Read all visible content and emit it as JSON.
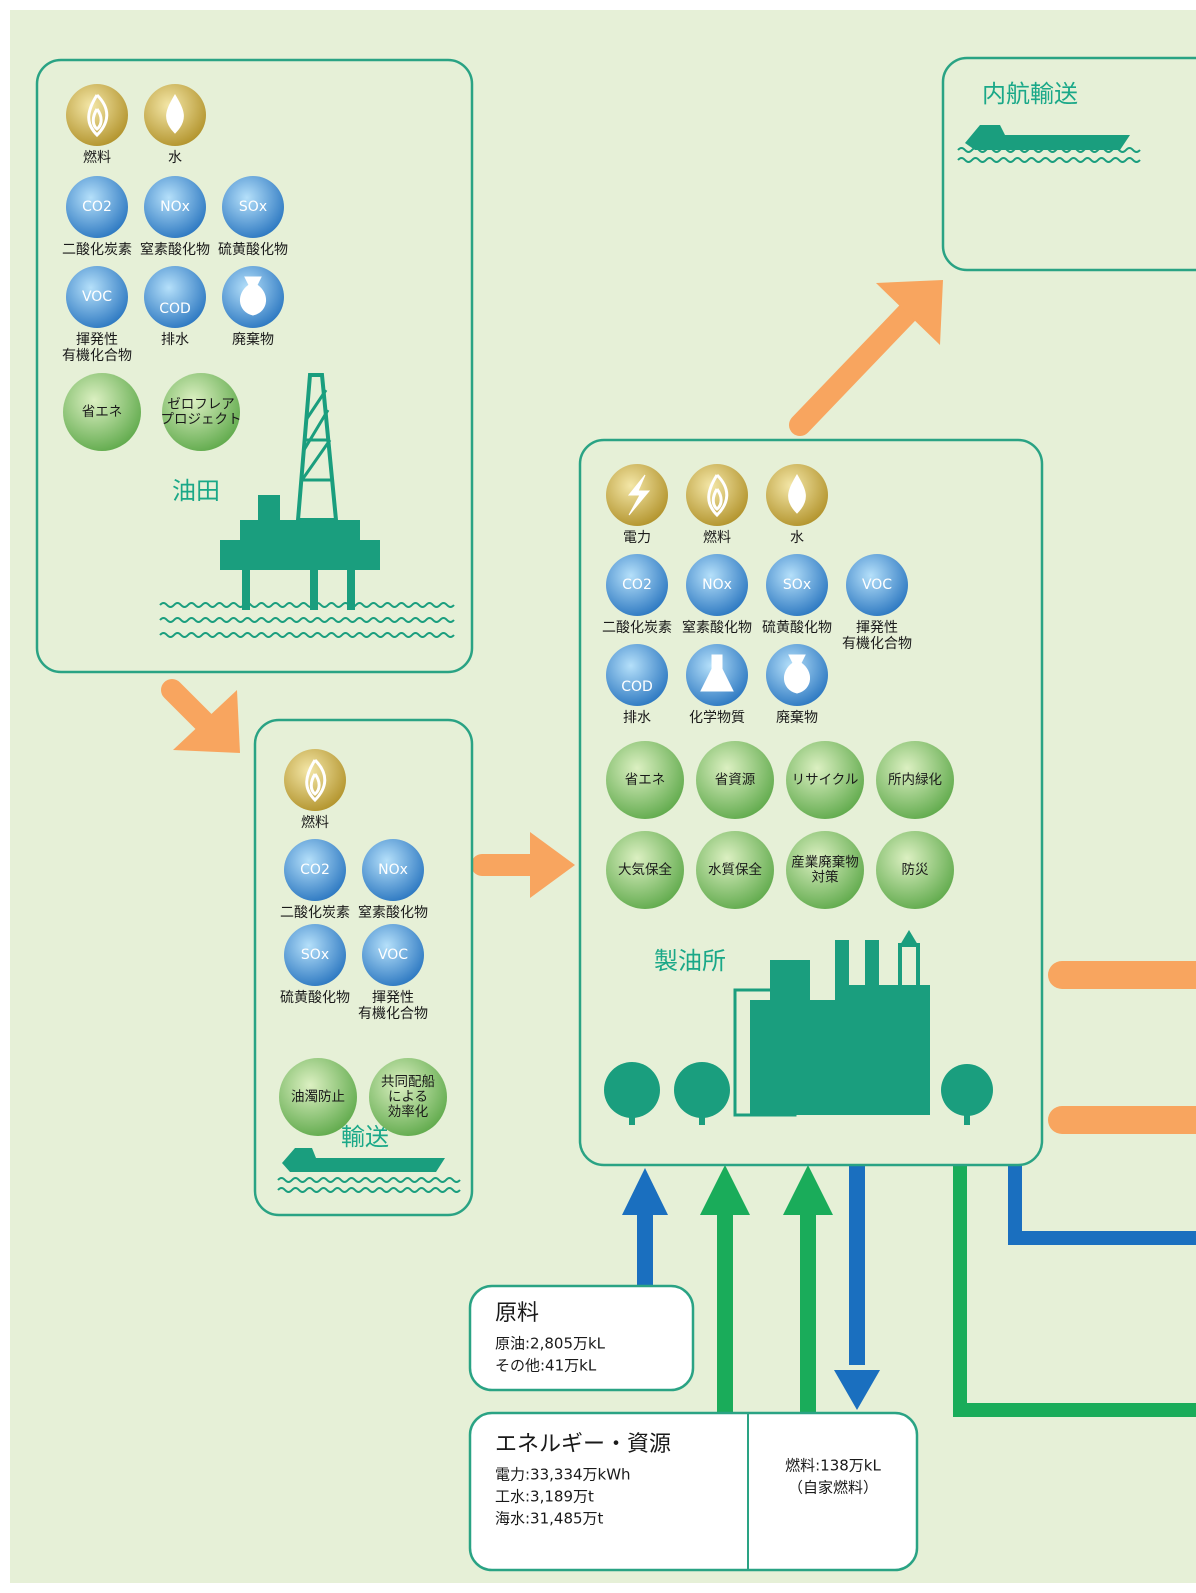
{
  "oilfield": {
    "title": "油田",
    "icons": [
      {
        "label": [
          "燃料"
        ]
      },
      {
        "label": [
          "水"
        ]
      },
      {
        "inner": "CO2",
        "label": [
          "二酸化炭素"
        ]
      },
      {
        "inner": "NOx",
        "label": [
          "窒素酸化物"
        ]
      },
      {
        "inner": "SOx",
        "label": [
          "硫黄酸化物"
        ]
      },
      {
        "inner": "VOC",
        "label": [
          "揮発性",
          "有機化合物"
        ]
      },
      {
        "inner": "COD",
        "label": [
          "排水"
        ]
      },
      {
        "label": [
          "廃棄物"
        ]
      }
    ],
    "measures": [
      [
        "省エネ"
      ],
      [
        "ゼロフレア",
        "プロジェクト"
      ]
    ]
  },
  "transport": {
    "title": "輸送",
    "icons": [
      {
        "label": [
          "燃料"
        ]
      },
      {
        "inner": "CO2",
        "label": [
          "二酸化炭素"
        ]
      },
      {
        "inner": "NOx",
        "label": [
          "窒素酸化物"
        ]
      },
      {
        "inner": "SOx",
        "label": [
          "硫黄酸化物"
        ]
      },
      {
        "inner": "VOC",
        "label": [
          "揮発性",
          "有機化合物"
        ]
      }
    ],
    "measures": [
      [
        "油濁防止"
      ],
      [
        "共同配船",
        "による",
        "効率化"
      ]
    ]
  },
  "refinery": {
    "title": "製油所",
    "icons": [
      {
        "label": [
          "電力"
        ]
      },
      {
        "label": [
          "燃料"
        ]
      },
      {
        "label": [
          "水"
        ]
      },
      {
        "inner": "CO2",
        "label": [
          "二酸化炭素"
        ]
      },
      {
        "inner": "NOx",
        "label": [
          "窒素酸化物"
        ]
      },
      {
        "inner": "SOx",
        "label": [
          "硫黄酸化物"
        ]
      },
      {
        "inner": "VOC",
        "label": [
          "揮発性",
          "有機化合物"
        ]
      },
      {
        "inner": "COD",
        "label": [
          "排水"
        ]
      },
      {
        "label": [
          "化学物質"
        ]
      },
      {
        "label": [
          "廃棄物"
        ]
      }
    ],
    "measures": [
      [
        "省エネ"
      ],
      [
        "省資源"
      ],
      [
        "リサイクル"
      ],
      [
        "所内緑化"
      ],
      [
        "大気保全"
      ],
      [
        "水質保全"
      ],
      [
        "産業廃棄物",
        "対策"
      ],
      [
        "防災"
      ]
    ]
  },
  "coastal_shipping": {
    "title": "内航輸送"
  },
  "raw_materials": {
    "title": "原料",
    "items": [
      "原油:2,805万kL",
      "その他:41万kL"
    ]
  },
  "energy_resources": {
    "title": "エネルギー・資源",
    "items": [
      "電力:33,334万kWh",
      "工水:3,189万t",
      "海水:31,485万t"
    ],
    "self_fuel": [
      "燃料:138万kL",
      "（自家燃料）"
    ]
  }
}
